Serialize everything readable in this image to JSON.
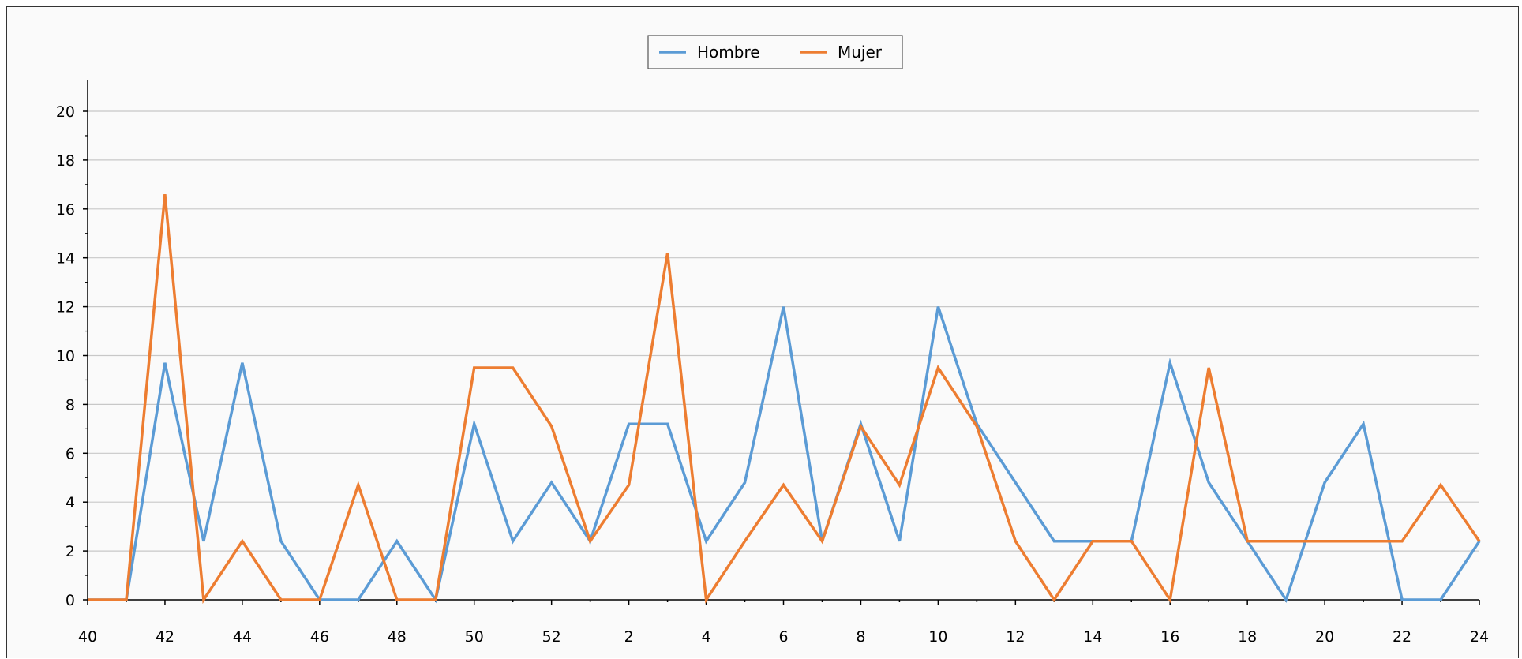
{
  "chart_data": {
    "type": "line",
    "title": "",
    "xlabel": "",
    "ylabel": "",
    "ylim": [
      0,
      20
    ],
    "y_ticks": [
      "0",
      "2",
      "4",
      "6",
      "8",
      "10",
      "12",
      "14",
      "16",
      "18",
      "20"
    ],
    "grid": "horizontal",
    "legend": "top-center",
    "categories": [
      "40",
      "41",
      "42",
      "43",
      "44",
      "45",
      "46",
      "47",
      "48",
      "49",
      "50",
      "51",
      "52",
      "1",
      "2",
      "3",
      "4",
      "5",
      "6",
      "7",
      "8",
      "9",
      "10",
      "11",
      "12",
      "13",
      "14",
      "15",
      "16",
      "17",
      "18",
      "19",
      "20",
      "21",
      "22",
      "23",
      "24"
    ],
    "x_tick_labels": [
      "40",
      "42",
      "44",
      "46",
      "48",
      "50",
      "52",
      "2",
      "4",
      "6",
      "8",
      "10",
      "12",
      "14",
      "16",
      "18",
      "20",
      "22",
      "24"
    ],
    "series": [
      {
        "name": "Hombre",
        "color": "#5b9bd5",
        "values": [
          0,
          0,
          9.7,
          2.4,
          9.7,
          2.4,
          0,
          0,
          2.4,
          0,
          7.2,
          2.4,
          4.8,
          2.4,
          7.2,
          7.2,
          2.4,
          4.8,
          12,
          2.4,
          7.2,
          2.4,
          12,
          7.2,
          4.8,
          2.4,
          2.4,
          2.4,
          9.7,
          4.8,
          2.4,
          0,
          4.8,
          7.2,
          0,
          0,
          2.4
        ]
      },
      {
        "name": "Mujer",
        "color": "#ed7d31",
        "values": [
          0,
          0,
          16.6,
          0,
          2.4,
          0,
          0,
          4.7,
          0,
          0,
          9.5,
          9.5,
          7.1,
          2.4,
          4.7,
          14.2,
          0,
          2.4,
          4.7,
          2.4,
          7.1,
          4.7,
          9.5,
          7.1,
          2.4,
          0,
          2.4,
          2.4,
          0,
          9.5,
          2.4,
          2.4,
          2.4,
          2.4,
          2.4,
          4.7,
          2.4
        ]
      }
    ]
  }
}
